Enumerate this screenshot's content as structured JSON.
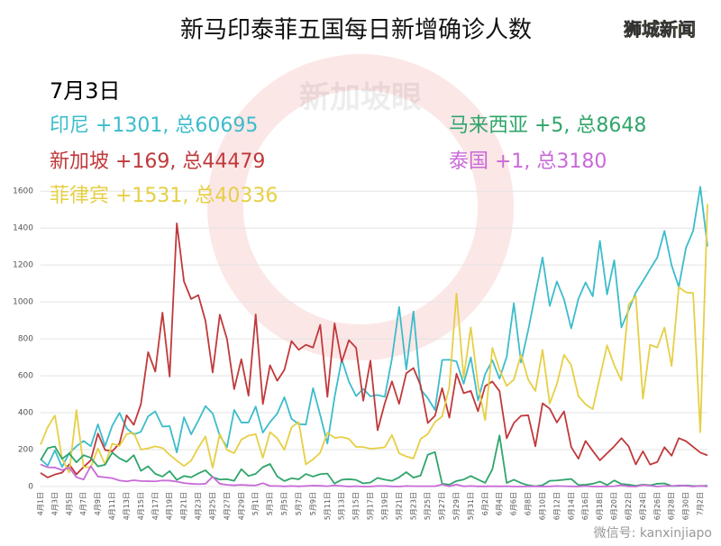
{
  "chart_data": {
    "type": "line",
    "title": "新马印泰菲五国每日新增确诊人数",
    "badge": "狮城新闻",
    "subtitle": "7月3日",
    "watermark": "新加坡眼",
    "footer": "微信号: kanxinjiapo",
    "categories": [
      "4月1日",
      null,
      "4月3日",
      null,
      "4月5日",
      null,
      "4月7日",
      null,
      "4月9日",
      null,
      "4月11日",
      null,
      "4月13日",
      null,
      "4月15日",
      null,
      "4月17日",
      null,
      "4月19日",
      null,
      "4月21日",
      null,
      "4月23日",
      null,
      "4月25日",
      null,
      "4月27日",
      null,
      "4月29日",
      null,
      "5月1日",
      null,
      "5月3日",
      null,
      "5月5日",
      null,
      "5月7日",
      null,
      "5月9日",
      null,
      "5月11日",
      null,
      "5月13日",
      null,
      "5月15日",
      null,
      "5月17日",
      null,
      "5月19日",
      null,
      "5月21日",
      null,
      "5月23日",
      null,
      "5月25日",
      null,
      "5月27日",
      null,
      "5月29日",
      null,
      "5月31日",
      null,
      "6月2日",
      null,
      "6月4日",
      null,
      "6月6日",
      null,
      "6月8日",
      null,
      "6月10日",
      null,
      "6月12日",
      null,
      "6月14日",
      null,
      "6月16日",
      null,
      "6月18日",
      null,
      "6月20日",
      null,
      "6月22日",
      null,
      "6月24日",
      null,
      "6月26日",
      null,
      "6月28日",
      null,
      "6月30日",
      null,
      "7月2日",
      null
    ],
    "series": [
      {
        "name": "印尼 +1301, 总60695",
        "color": "#3cbccb",
        "values": [
          149,
          113,
          196,
          106,
          181,
          218,
          247,
          218,
          337,
          219,
          330,
          399,
          316,
          282,
          297,
          380,
          407,
          325,
          327,
          185,
          375,
          283,
          357,
          436,
          396,
          275,
          214,
          415,
          347,
          347,
          433,
          292,
          349,
          395,
          484,
          367,
          338,
          336,
          533,
          387,
          233,
          484,
          689,
          568,
          490,
          529,
          489,
          496,
          486,
          693,
          973,
          634,
          949,
          526,
          479,
          415,
          686,
          687,
          678,
          557,
          700,
          467,
          609,
          684,
          585,
          703,
          993,
          672,
          847,
          1043,
          1241,
          979,
          1111,
          1014,
          857,
          1017,
          1106,
          1031,
          1331,
          1041,
          1226,
          862,
          954,
          1051,
          1113,
          1178,
          1241,
          1385,
          1198,
          1082,
          1293,
          1385,
          1624,
          1301
        ]
      },
      {
        "name": "新加坡 +169, 总44479",
        "color": "#c0393b",
        "values": [
          74,
          49,
          65,
          75,
          120,
          66,
          106,
          142,
          287,
          198,
          191,
          233,
          386,
          334,
          447,
          728,
          623,
          942,
          596,
          1426,
          1111,
          1016,
          1037,
          897,
          618,
          931,
          799,
          528,
          690,
          492,
          932,
          447,
          657,
          573,
          632,
          788,
          741,
          768,
          753,
          876,
          486,
          884,
          675,
          793,
          752,
          465,
          682,
          305,
          451,
          570,
          448,
          614,
          642,
          548,
          344,
          383,
          533,
          373,
          611,
          506,
          518,
          408,
          544,
          569,
          517,
          261,
          344,
          383,
          386,
          218,
          451,
          422,
          347,
          407,
          214,
          151,
          247,
          193,
          142,
          180,
          218,
          262,
          218,
          120,
          191,
          119,
          133,
          213,
          167,
          262,
          246,
          215,
          184,
          169
        ]
      },
      {
        "name": "菲律宾 +1531, 总40336",
        "color": "#e6cf45",
        "values": [
          227,
          322,
          385,
          152,
          76,
          414,
          106,
          104,
          206,
          119,
          233,
          220,
          284,
          291,
          200,
          207,
          218,
          209,
          172,
          140,
          111,
          140,
          211,
          271,
          102,
          285,
          198,
          181,
          254,
          276,
          284,
          156,
          295,
          262,
          199,
          320,
          350,
          120,
          147,
          184,
          292,
          264,
          268,
          258,
          215,
          214,
          205,
          208,
          213,
          279,
          180,
          163,
          152,
          258,
          284,
          350,
          380,
          539,
          1046,
          590,
          862,
          552,
          359,
          751,
          634,
          545,
          579,
          714,
          579,
          518,
          740,
          450,
          555,
          714,
          657,
          490,
          445,
          420,
          592,
          765,
          657,
          574,
          985,
          1032,
          476,
          768,
          753,
          862,
          653,
          1080,
          1052,
          1048,
          294,
          1531
        ]
      },
      {
        "name": "马来西亚 +5, 总8648",
        "color": "#2fa56a",
        "values": [
          142,
          208,
          217,
          150,
          179,
          131,
          170,
          156,
          109,
          118,
          184,
          153,
          134,
          170,
          85,
          110,
          69,
          54,
          84,
          36,
          57,
          50,
          71,
          88,
          51,
          38,
          40,
          31,
          94,
          57,
          69,
          105,
          122,
          55,
          30,
          45,
          39,
          68,
          54,
          67,
          70,
          16,
          37,
          40,
          36,
          17,
          22,
          47,
          37,
          31,
          50,
          78,
          48,
          60,
          172,
          187,
          15,
          10,
          30,
          38,
          57,
          38,
          20,
          93,
          277,
          19,
          37,
          19,
          7,
          2,
          7,
          31,
          33,
          37,
          41,
          8,
          10,
          15,
          27,
          8,
          33,
          14,
          10,
          4,
          10,
          7,
          15,
          17,
          3,
          3,
          6,
          3,
          3,
          5
        ]
      },
      {
        "name": "泰国 +1, 总3180",
        "color": "#c86ad8",
        "values": [
          120,
          104,
          103,
          89,
          102,
          51,
          38,
          111,
          54,
          50,
          45,
          33,
          28,
          34,
          30,
          29,
          28,
          33,
          32,
          27,
          19,
          15,
          13,
          15,
          53,
          15,
          9,
          7,
          9,
          7,
          6,
          18,
          3,
          3,
          1,
          3,
          1,
          3,
          5,
          4,
          2,
          6,
          3,
          0,
          2,
          0,
          0,
          3,
          3,
          1,
          0,
          3,
          2,
          2,
          2,
          2,
          11,
          1,
          11,
          1,
          3,
          1,
          1,
          2,
          1,
          2,
          0,
          0,
          1,
          1,
          0,
          1,
          3,
          2,
          1,
          0,
          3,
          0,
          0,
          1,
          2,
          7,
          1,
          0,
          8,
          5,
          0,
          3,
          3,
          6,
          4,
          0,
          4,
          1
        ]
      }
    ],
    "ylim": [
      0,
      1650
    ],
    "yticks": [
      0,
      200,
      400,
      600,
      800,
      1000,
      1200,
      1400,
      1600
    ],
    "grid": true
  }
}
